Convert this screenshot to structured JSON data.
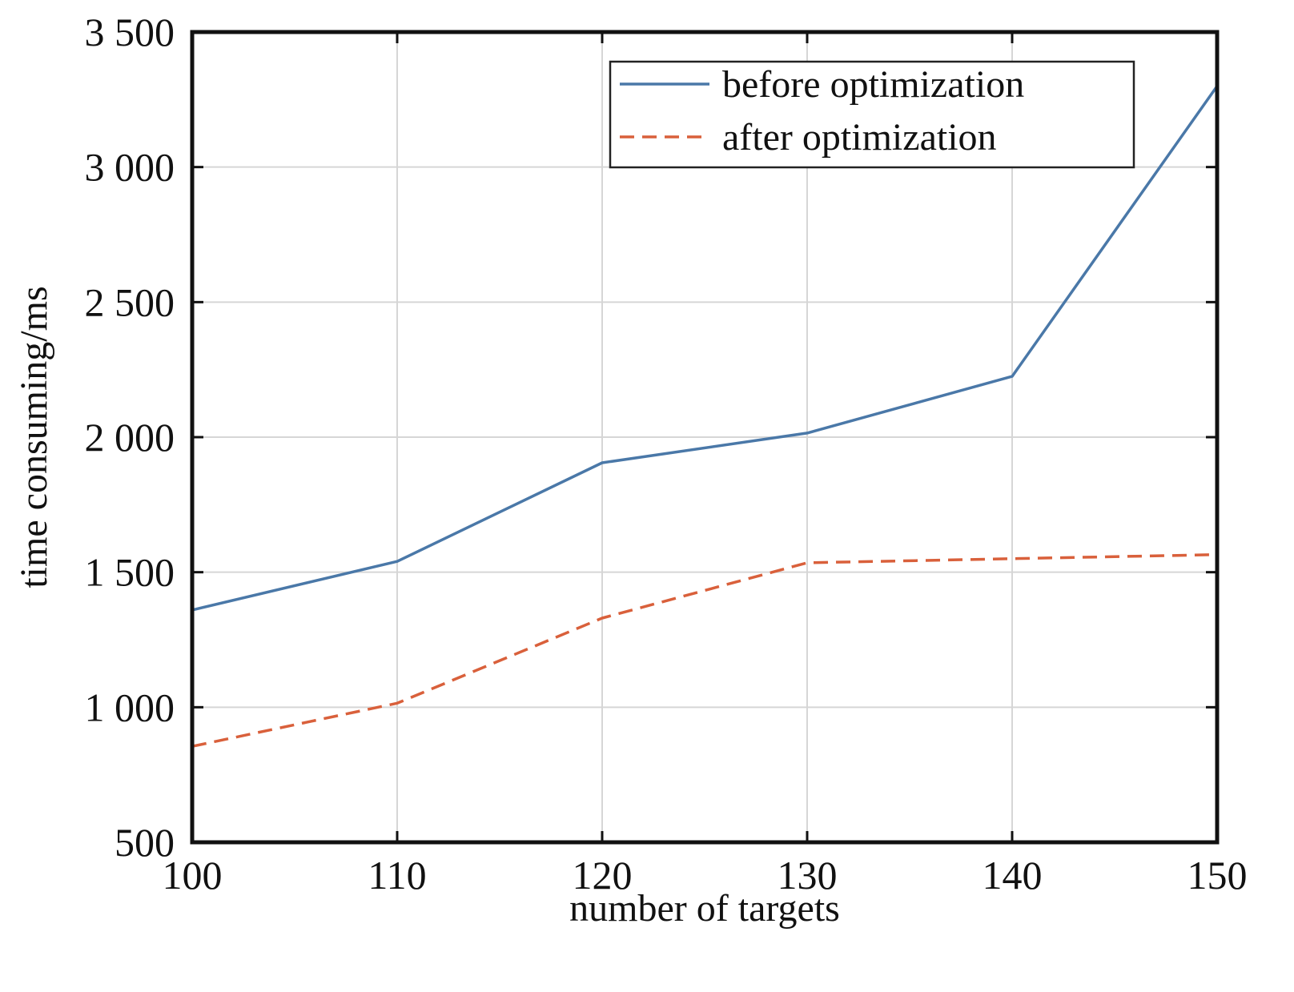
{
  "chart_data": {
    "type": "line",
    "title": "",
    "xlabel": "number of targets",
    "ylabel": "time consuming/ms",
    "x": [
      100,
      110,
      120,
      130,
      140,
      150
    ],
    "xlim": [
      100,
      150
    ],
    "ylim": [
      500,
      3500
    ],
    "xticks": [
      100,
      110,
      120,
      130,
      140,
      150
    ],
    "xtick_labels": [
      "100",
      "110",
      "120",
      "130",
      "140",
      "150"
    ],
    "yticks": [
      500,
      1000,
      1500,
      2000,
      2500,
      3000,
      3500
    ],
    "ytick_labels": [
      "500",
      "1 000",
      "1 500",
      "2 000",
      "2 500",
      "3 000",
      "3 500"
    ],
    "grid": true,
    "legend_position": "top-right",
    "series": [
      {
        "name": "before optimization",
        "values": [
          1360,
          1540,
          1905,
          2015,
          2225,
          3300
        ],
        "color": "#4a78a8",
        "style": "solid"
      },
      {
        "name": "after optimization",
        "values": [
          855,
          1015,
          1330,
          1535,
          1550,
          1565
        ],
        "color": "#d9603b",
        "style": "dashed"
      }
    ]
  }
}
